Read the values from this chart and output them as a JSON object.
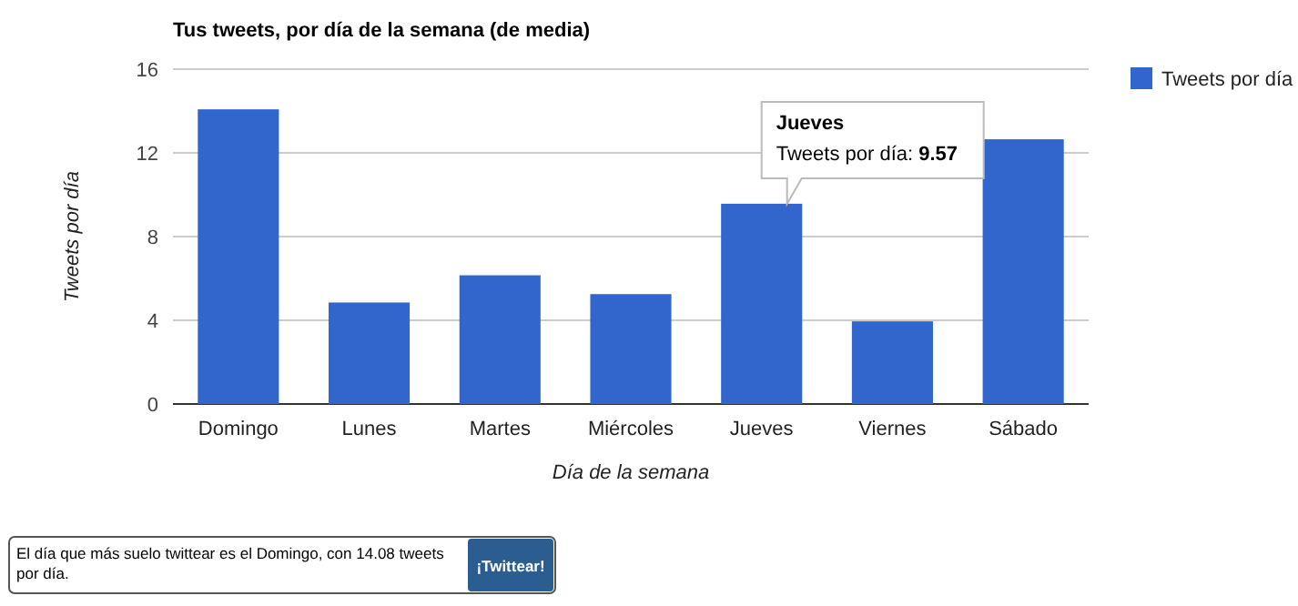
{
  "chart_data": {
    "type": "bar",
    "title": "Tus tweets, por día de la semana (de media)",
    "xlabel": "Día de la semana",
    "ylabel": "Tweets por día",
    "categories": [
      "Domingo",
      "Lunes",
      "Martes",
      "Miércoles",
      "Jueves",
      "Viernes",
      "Sábado"
    ],
    "series": [
      {
        "name": "Tweets por día",
        "color": "#3366cc",
        "values": [
          14.08,
          4.85,
          6.15,
          5.25,
          9.57,
          3.95,
          12.65
        ]
      }
    ],
    "ylim": [
      0,
      16
    ],
    "yticks": [
      0,
      4,
      8,
      12,
      16
    ],
    "grid": "y",
    "legend": "top right",
    "annotations": [
      {
        "text": "Jueves\nTweets por día: 9.57",
        "x": "Jueves",
        "y": 9.57
      },
      "El día que más suelo twittear es el Domingo, con 14.08 tweets por día.",
      "¡Twittear!"
    ]
  }
}
